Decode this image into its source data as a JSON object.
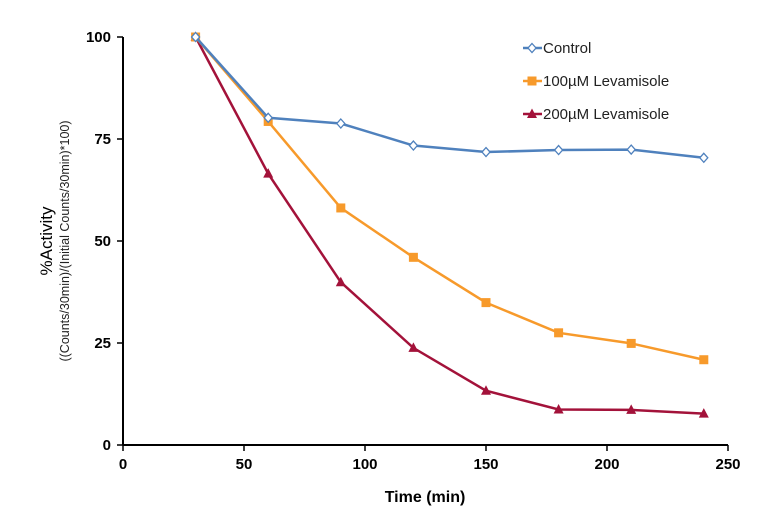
{
  "chart_data": {
    "type": "line",
    "title": "",
    "xlabel": "Time (min)",
    "ylabel": "%Activity",
    "ylabel_sub": "((Counts/30min)/(Initial Counts/30min)*100)",
    "xlim": [
      0,
      250
    ],
    "ylim": [
      0,
      100
    ],
    "xticks": [
      0,
      50,
      100,
      150,
      200,
      250
    ],
    "yticks": [
      0,
      25,
      50,
      75,
      100
    ],
    "grid": false,
    "legend_position": "top-right",
    "x": [
      30,
      60,
      90,
      120,
      150,
      180,
      210,
      240
    ],
    "series": [
      {
        "name": "Control",
        "color": "#4f81bd",
        "marker": "diamond-open",
        "values": [
          100,
          80.2,
          78.8,
          73.4,
          71.8,
          72.3,
          72.4,
          70.4
        ]
      },
      {
        "name": "100µM Levamisole",
        "color": "#f79a2b",
        "marker": "square",
        "values": [
          100,
          79.3,
          58.1,
          46,
          34.9,
          27.5,
          24.9,
          20.9
        ]
      },
      {
        "name": "200µM Levamisole",
        "color": "#a3123a",
        "marker": "triangle",
        "values": [
          100,
          66.5,
          39.9,
          23.8,
          13.3,
          8.7,
          8.6,
          7.7
        ]
      }
    ]
  }
}
